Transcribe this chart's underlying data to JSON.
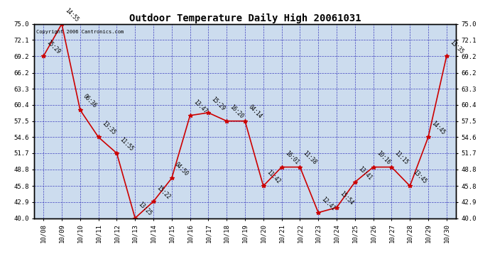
{
  "title": "Outdoor Temperature Daily High 20061031",
  "copyright_text": "Copyright 2006 Cantronics.com",
  "dates": [
    "10/08",
    "10/09",
    "10/10",
    "10/11",
    "10/12",
    "10/13",
    "10/14",
    "10/15",
    "10/16",
    "10/17",
    "10/18",
    "10/19",
    "10/20",
    "10/21",
    "10/22",
    "10/23",
    "10/24",
    "10/25",
    "10/26",
    "10/27",
    "10/28",
    "10/29",
    "10/30"
  ],
  "values": [
    69.2,
    75.0,
    59.5,
    54.6,
    51.7,
    40.0,
    43.0,
    47.2,
    58.5,
    59.0,
    57.5,
    57.5,
    45.8,
    49.2,
    49.2,
    41.0,
    41.9,
    46.5,
    49.2,
    49.2,
    45.8,
    54.6,
    69.2
  ],
  "time_labels": [
    "15:29",
    "14:55",
    "06:36",
    "13:35",
    "11:55",
    "13:25",
    "15:22",
    "04:50",
    "13:47",
    "15:29",
    "16:20",
    "04:14",
    "11:42",
    "16:01",
    "11:38",
    "12:41",
    "15:54",
    "13:41",
    "10:16",
    "11:15",
    "13:45",
    "14:45",
    "13:35"
  ],
  "ylim": [
    40.0,
    75.0
  ],
  "yticks": [
    40.0,
    42.9,
    45.8,
    48.8,
    51.7,
    54.6,
    57.5,
    60.4,
    63.3,
    66.2,
    69.2,
    72.1,
    75.0
  ],
  "ytick_labels": [
    "40.0",
    "42.9",
    "45.8",
    "48.8",
    "51.7",
    "54.6",
    "57.5",
    "60.4",
    "63.3",
    "66.2",
    "69.2",
    "72.1",
    "75.0"
  ],
  "line_color": "#cc0000",
  "marker_color": "#cc0000",
  "bg_color": "#ffffff",
  "plot_bg_color": "#ccdcee",
  "grid_color": "#3333bb",
  "title_fontsize": 10,
  "annotation_fontsize": 5.5,
  "tick_fontsize": 6.5
}
